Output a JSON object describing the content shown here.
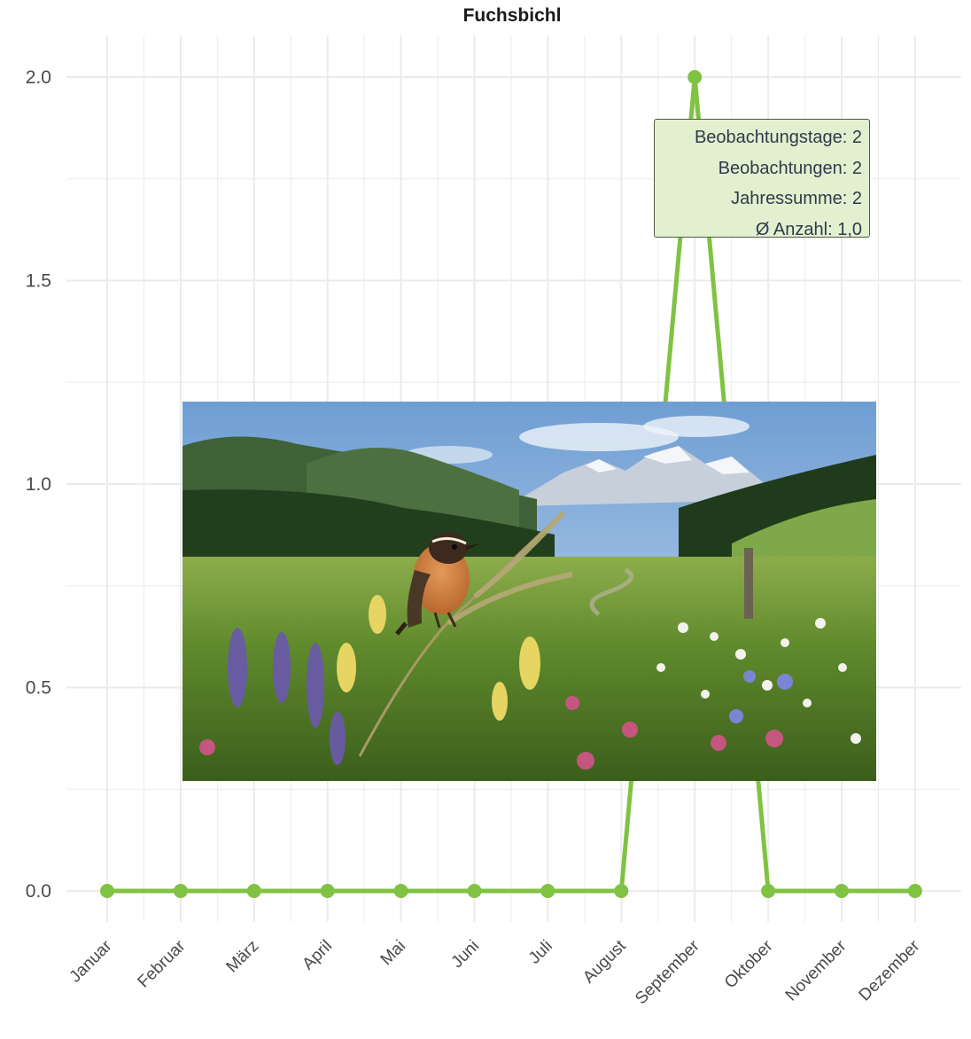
{
  "chart_data": {
    "type": "line",
    "title": "Fuchsbichl",
    "categories": [
      "Januar",
      "Februar",
      "März",
      "April",
      "Mai",
      "Juni",
      "Juli",
      "August",
      "September",
      "Oktober",
      "November",
      "Dezember"
    ],
    "series": [
      {
        "values": [
          0,
          0,
          0,
          0,
          0,
          0,
          0,
          0,
          2,
          0,
          0,
          0
        ]
      }
    ],
    "yticks": [
      "0.0",
      "0.5",
      "1.0",
      "1.5",
      "2.0"
    ],
    "ylim": [
      0,
      2
    ],
    "grid": true,
    "colors": {
      "line": "#80c242",
      "grid": "#ebebeb"
    },
    "tooltip": {
      "lines": [
        "Beobachtungstage: 2",
        "Beobachtungen: 2",
        "Jahressumme: 2",
        "Ø Anzahl: 1,0"
      ]
    }
  },
  "photo": {
    "icon": "meadow-bird-photo"
  }
}
